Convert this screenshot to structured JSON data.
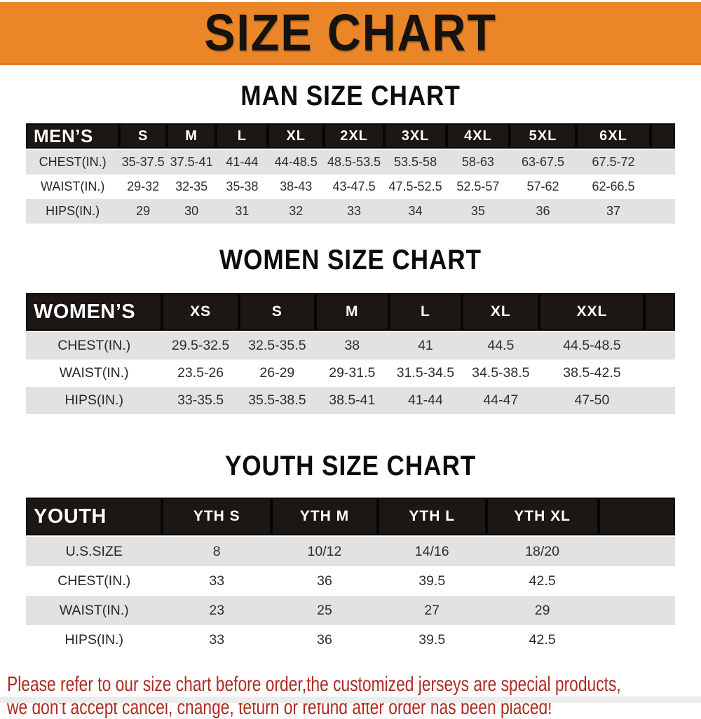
{
  "page": {
    "title": "SIZE CHART"
  },
  "colors": {
    "banner_orange": "#EA8628",
    "table_header_black": "#1C1713",
    "row_gray": "#E2E2E2",
    "footer_red": "#AD2B23"
  },
  "men": {
    "section_title": "MAN SIZE CHART",
    "header_label": "MEN’S",
    "sizes": [
      "S",
      "M",
      "L",
      "XL",
      "2XL",
      "3XL",
      "4XL",
      "5XL",
      "6XL"
    ],
    "rows": [
      {
        "label": "CHEST(IN.)",
        "values": [
          "35-37.5",
          "37.5-41",
          "41-44",
          "44-48.5",
          "48.5-53.5",
          "53.5-58",
          "58-63",
          "63-67.5",
          "67.5-72"
        ]
      },
      {
        "label": "WAIST(IN.)",
        "values": [
          "29-32",
          "32-35",
          "35-38",
          "38-43",
          "43-47.5",
          "47.5-52.5",
          "52.5-57",
          "57-62",
          "62-66.5"
        ]
      },
      {
        "label": "HIPS(IN.)",
        "values": [
          "29",
          "30",
          "31",
          "32",
          "33",
          "34",
          "35",
          "36",
          "37"
        ]
      }
    ]
  },
  "women": {
    "section_title": "WOMEN SIZE CHART",
    "header_label": "WOMEN’S",
    "sizes": [
      "XS",
      "S",
      "M",
      "L",
      "XL",
      "XXL"
    ],
    "rows": [
      {
        "label": "CHEST(IN.)",
        "values": [
          "29.5-32.5",
          "32.5-35.5",
          "38",
          "41",
          "44.5",
          "44.5-48.5"
        ]
      },
      {
        "label": "WAIST(IN.)",
        "values": [
          "23.5-26",
          "26-29",
          "29-31.5",
          "31.5-34.5",
          "34.5-38.5",
          "38.5-42.5"
        ]
      },
      {
        "label": "HIPS(IN.)",
        "values": [
          "33-35.5",
          "35.5-38.5",
          "38.5-41",
          "41-44",
          "44-47",
          "47-50"
        ]
      }
    ]
  },
  "youth": {
    "section_title": "YOUTH SIZE CHART",
    "header_label": "YOUTH",
    "sizes": [
      "YTH S",
      "YTH M",
      "YTH L",
      "YTH XL"
    ],
    "rows": [
      {
        "label": "U.S.SIZE",
        "values": [
          "8",
          "10/12",
          "14/16",
          "18/20"
        ]
      },
      {
        "label": "CHEST(IN.)",
        "values": [
          "33",
          "36",
          "39.5",
          "42.5"
        ]
      },
      {
        "label": "WAIST(IN.)",
        "values": [
          "23",
          "25",
          "27",
          "29"
        ]
      },
      {
        "label": "HIPS(IN.)",
        "values": [
          "33",
          "36",
          "39.5",
          "42.5"
        ]
      }
    ]
  },
  "footer": {
    "line1": "Please refer to our size chart before order,the customized jerseys are special products,",
    "line2": "we don't accept cancel, change, teturn or refund after order has been placed!"
  }
}
